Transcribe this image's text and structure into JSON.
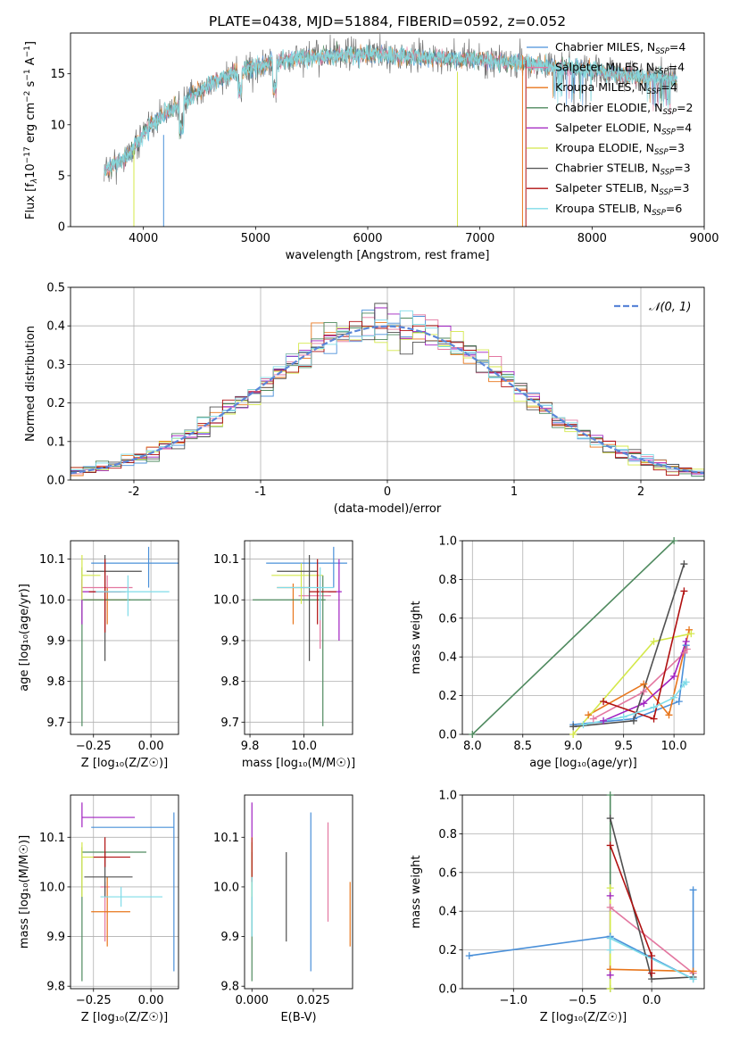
{
  "title": "PLATE=0438, MJD=51884, FIBERID=0592, z=0.052",
  "colors": {
    "Chabrier MILES": "#4a90d9",
    "Salpeter MILES": "#e377a0",
    "Kroupa MILES": "#e8761c",
    "Chabrier ELODIE": "#4f8a5f",
    "Salpeter ELODIE": "#a020c0",
    "Kroupa ELODIE": "#d4e84a",
    "Chabrier STELIB": "#505050",
    "Salpeter STELIB": "#b01010",
    "Kroupa STELIB": "#7fdce8",
    "normal": "#5b86d8",
    "spectrum": "#707070",
    "model": "#86d6da"
  },
  "chart_data": [
    {
      "id": "spectrum",
      "type": "line",
      "xlabel": "wavelength [Angstrom, rest frame]",
      "ylabel_parts": [
        "Flux [f",
        "λ",
        "10",
        "−17",
        " erg cm",
        "−2",
        " s",
        "−1",
        " A",
        "−1",
        "]"
      ],
      "xlim": [
        3350,
        9000
      ],
      "ylim": [
        0,
        19
      ],
      "xticks": [
        4000,
        5000,
        6000,
        7000,
        8000,
        9000
      ],
      "yticks": [
        0,
        5,
        10,
        15
      ],
      "continuum": [
        [
          3650,
          5.5
        ],
        [
          3700,
          5.8
        ],
        [
          3800,
          6.5
        ],
        [
          3900,
          7.5
        ],
        [
          4000,
          9.2
        ],
        [
          4100,
          10.3
        ],
        [
          4200,
          11.2
        ],
        [
          4300,
          11.8
        ],
        [
          4400,
          12.5
        ],
        [
          4500,
          13.3
        ],
        [
          4600,
          14.0
        ],
        [
          4700,
          14.5
        ],
        [
          4800,
          15.0
        ],
        [
          4900,
          15.4
        ],
        [
          5000,
          15.6
        ],
        [
          5200,
          16.2
        ],
        [
          5400,
          16.6
        ],
        [
          5600,
          16.7
        ],
        [
          5800,
          16.9
        ],
        [
          6000,
          16.9
        ],
        [
          6200,
          16.8
        ],
        [
          6400,
          16.7
        ],
        [
          6600,
          16.6
        ],
        [
          6800,
          16.5
        ],
        [
          7000,
          16.4
        ],
        [
          7200,
          16.2
        ],
        [
          7400,
          16.0
        ],
        [
          7600,
          15.8
        ],
        [
          7800,
          15.6
        ],
        [
          8000,
          15.3
        ],
        [
          8200,
          15.0
        ],
        [
          8400,
          14.8
        ],
        [
          8600,
          14.6
        ],
        [
          8760,
          14.4
        ]
      ],
      "legend": [
        {
          "name": "Chabrier MILES",
          "nssp": "4"
        },
        {
          "name": "Salpeter MILES",
          "nssp": "4"
        },
        {
          "name": "Kroupa MILES",
          "nssp": "4"
        },
        {
          "name": "Chabrier ELODIE",
          "nssp": "2"
        },
        {
          "name": "Salpeter ELODIE",
          "nssp": "4"
        },
        {
          "name": "Kroupa ELODIE",
          "nssp": "3"
        },
        {
          "name": "Chabrier STELIB",
          "nssp": "3"
        },
        {
          "name": "Salpeter STELIB",
          "nssp": "3"
        },
        {
          "name": "Kroupa STELIB",
          "nssp": "6"
        }
      ],
      "legend_location": "right"
    },
    {
      "id": "residuals",
      "type": "histogram",
      "xlabel": "(data-model)/error",
      "ylabel": "Normed distribution",
      "xlim": [
        -2.5,
        2.5
      ],
      "ylim": [
        0,
        0.5
      ],
      "xticks": [
        -2,
        -1,
        0,
        1,
        2
      ],
      "yticks": [
        0.0,
        0.1,
        0.2,
        0.3,
        0.4,
        0.5
      ],
      "normal_label": "𝒩(0, 1)",
      "bin_width": 0.1,
      "grid": true
    },
    {
      "id": "age_vs_Z",
      "type": "errorbar",
      "xlabel": "Z [log₁₀(Z/Z☉)]",
      "ylabel": "age  [log₁₀(age/yr)]",
      "xlim": [
        -0.35,
        0.12
      ],
      "ylim": [
        9.67,
        10.145
      ],
      "xticks": [
        -0.25,
        0.0
      ],
      "xtick_labels": [
        "−0.25",
        "0.00"
      ],
      "yticks": [
        9.7,
        9.8,
        9.9,
        10.0,
        10.1
      ],
      "points": [
        {
          "s": "Chabrier MILES",
          "x": -0.01,
          "y": 10.09,
          "xl": -0.26,
          "xh": 0.12,
          "yl": 10.03,
          "yh": 10.13
        },
        {
          "s": "Salpeter MILES",
          "x": -0.19,
          "y": 10.03,
          "xl": -0.3,
          "xh": -0.08,
          "yl": 10.0,
          "yh": 10.06
        },
        {
          "s": "Kroupa MILES",
          "x": -0.19,
          "y": 10.0,
          "xl": -0.29,
          "xh": -0.09,
          "yl": 9.94,
          "yh": 10.03
        },
        {
          "s": "Chabrier ELODIE",
          "x": -0.3,
          "y": 10.0,
          "xl": -0.3,
          "xh": 0.0,
          "yl": 9.69,
          "yh": 10.08
        },
        {
          "s": "Salpeter ELODIE",
          "x": -0.3,
          "y": 10.02,
          "xl": -0.3,
          "xh": -0.13,
          "yl": 9.94,
          "yh": 10.05
        },
        {
          "s": "Kroupa ELODIE",
          "x": -0.3,
          "y": 10.06,
          "xl": -0.3,
          "xh": -0.22,
          "yl": 10.0,
          "yh": 10.11
        },
        {
          "s": "Chabrier STELIB",
          "x": -0.2,
          "y": 10.07,
          "xl": -0.28,
          "xh": -0.04,
          "yl": 9.85,
          "yh": 10.11
        },
        {
          "s": "Salpeter STELIB",
          "x": -0.2,
          "y": 10.02,
          "xl": -0.27,
          "xh": -0.11,
          "yl": 9.92,
          "yh": 10.1
        },
        {
          "s": "Kroupa STELIB",
          "x": -0.1,
          "y": 10.02,
          "xl": -0.24,
          "xh": 0.08,
          "yl": 9.96,
          "yh": 10.06
        }
      ],
      "grid": true
    },
    {
      "id": "age_vs_mass",
      "type": "errorbar",
      "xlabel": "mass [log₁₀(M/M☉)]",
      "ylabel": "",
      "xlim": [
        9.78,
        10.18
      ],
      "ylim": [
        9.67,
        10.145
      ],
      "xticks": [
        9.8,
        10.0
      ],
      "xtick_labels": [
        "9.8",
        "10.0"
      ],
      "yticks": [
        9.7,
        9.8,
        9.9,
        10.0,
        10.1
      ],
      "points": [
        {
          "s": "Chabrier MILES",
          "x": 10.11,
          "y": 10.09,
          "xl": 9.86,
          "xh": 10.16,
          "yl": 10.03,
          "yh": 10.13
        },
        {
          "s": "Salpeter MILES",
          "x": 10.06,
          "y": 10.01,
          "xl": 9.98,
          "xh": 10.1,
          "yl": 9.88,
          "yh": 10.06
        },
        {
          "s": "Kroupa MILES",
          "x": 9.96,
          "y": 10.03,
          "xl": 9.9,
          "xh": 10.02,
          "yl": 9.94,
          "yh": 10.04
        },
        {
          "s": "Chabrier ELODIE",
          "x": 10.07,
          "y": 10.0,
          "xl": 9.81,
          "xh": 10.08,
          "yl": 9.69,
          "yh": 10.06
        },
        {
          "s": "Salpeter ELODIE",
          "x": 10.13,
          "y": 10.02,
          "xl": 10.09,
          "xh": 10.14,
          "yl": 9.9,
          "yh": 10.1
        },
        {
          "s": "Kroupa ELODIE",
          "x": 9.99,
          "y": 10.06,
          "xl": 9.88,
          "xh": 10.07,
          "yl": 9.99,
          "yh": 10.09
        },
        {
          "s": "Chabrier STELIB",
          "x": 10.02,
          "y": 10.07,
          "xl": 9.9,
          "xh": 10.05,
          "yl": 9.85,
          "yh": 10.11
        },
        {
          "s": "Salpeter STELIB",
          "x": 10.05,
          "y": 10.02,
          "xl": 10.02,
          "xh": 10.12,
          "yl": 9.94,
          "yh": 10.1
        },
        {
          "s": "Kroupa STELIB",
          "x": 10.06,
          "y": 10.03,
          "xl": 9.9,
          "xh": 10.11,
          "yl": 9.95,
          "yh": 10.08
        }
      ],
      "grid": true
    },
    {
      "id": "weight_vs_age",
      "type": "line",
      "xlabel": "age  [log₁₀(age/yr)]",
      "ylabel": "mass weight",
      "xlim": [
        7.9,
        10.3
      ],
      "ylim": [
        0,
        1.0
      ],
      "xticks": [
        8.0,
        8.5,
        9.0,
        9.5,
        10.0
      ],
      "xtick_labels": [
        "8.0",
        "8.5",
        "9.0",
        "9.5",
        "10.0"
      ],
      "yticks": [
        0.0,
        0.2,
        0.4,
        0.6,
        0.8,
        1.0
      ],
      "series": [
        {
          "s": "Chabrier MILES",
          "pts": [
            [
              9.0,
              0.05
            ],
            [
              9.6,
              0.08
            ],
            [
              10.05,
              0.17
            ],
            [
              10.12,
              0.46
            ]
          ]
        },
        {
          "s": "Salpeter MILES",
          "pts": [
            [
              9.2,
              0.08
            ],
            [
              9.7,
              0.22
            ],
            [
              10.1,
              0.42
            ],
            [
              10.13,
              0.44
            ]
          ]
        },
        {
          "s": "Kroupa MILES",
          "pts": [
            [
              9.15,
              0.1
            ],
            [
              9.7,
              0.26
            ],
            [
              9.95,
              0.1
            ],
            [
              10.15,
              0.54
            ]
          ]
        },
        {
          "s": "Chabrier ELODIE",
          "pts": [
            [
              8.0,
              0.0
            ],
            [
              10.0,
              1.0
            ]
          ]
        },
        {
          "s": "Salpeter ELODIE",
          "pts": [
            [
              9.3,
              0.07
            ],
            [
              9.7,
              0.16
            ],
            [
              10.0,
              0.3
            ],
            [
              10.12,
              0.48
            ]
          ]
        },
        {
          "s": "Kroupa ELODIE",
          "pts": [
            [
              9.0,
              0.0
            ],
            [
              9.8,
              0.48
            ],
            [
              10.17,
              0.52
            ]
          ]
        },
        {
          "s": "Chabrier STELIB",
          "pts": [
            [
              9.0,
              0.04
            ],
            [
              9.6,
              0.07
            ],
            [
              10.1,
              0.88
            ]
          ]
        },
        {
          "s": "Salpeter STELIB",
          "pts": [
            [
              9.3,
              0.17
            ],
            [
              9.8,
              0.08
            ],
            [
              10.1,
              0.74
            ]
          ]
        },
        {
          "s": "Kroupa STELIB",
          "pts": [
            [
              9.1,
              0.05
            ],
            [
              9.5,
              0.09
            ],
            [
              9.8,
              0.14
            ],
            [
              10.0,
              0.19
            ],
            [
              10.1,
              0.26
            ],
            [
              10.12,
              0.27
            ]
          ]
        }
      ],
      "grid": true
    },
    {
      "id": "mass_vs_Z",
      "type": "errorbar",
      "xlabel": "Z [log₁₀(Z/Z☉)]",
      "ylabel": "mass [log₁₀(M/M☉)]",
      "xlim": [
        -0.35,
        0.12
      ],
      "ylim": [
        9.795,
        10.185
      ],
      "xticks": [
        -0.25,
        0.0
      ],
      "xtick_labels": [
        "−0.25",
        "0.00"
      ],
      "yticks": [
        9.8,
        9.9,
        10.0,
        10.1
      ],
      "points": [
        {
          "s": "Chabrier MILES",
          "x": 0.1,
          "y": 10.12,
          "xl": -0.26,
          "xh": 0.1,
          "yl": 9.83,
          "yh": 10.15
        },
        {
          "s": "Salpeter MILES",
          "x": -0.2,
          "y": 10.0,
          "xl": -0.22,
          "xh": -0.18,
          "yl": 9.89,
          "yh": 10.01
        },
        {
          "s": "Kroupa MILES",
          "x": -0.19,
          "y": 9.95,
          "xl": -0.26,
          "xh": -0.09,
          "yl": 9.88,
          "yh": 10.02
        },
        {
          "s": "Chabrier ELODIE",
          "x": -0.3,
          "y": 10.07,
          "xl": -0.3,
          "xh": -0.02,
          "yl": 9.81,
          "yh": 10.08
        },
        {
          "s": "Salpeter ELODIE",
          "x": -0.3,
          "y": 10.14,
          "xl": -0.3,
          "xh": -0.07,
          "yl": 10.12,
          "yh": 10.17
        },
        {
          "s": "Kroupa ELODIE",
          "x": -0.3,
          "y": 10.06,
          "xl": -0.3,
          "xh": -0.2,
          "yl": 9.98,
          "yh": 10.09
        },
        {
          "s": "Chabrier STELIB",
          "x": -0.2,
          "y": 10.02,
          "xl": -0.29,
          "xh": -0.08,
          "yl": 9.98,
          "yh": 10.07
        },
        {
          "s": "Salpeter STELIB",
          "x": -0.2,
          "y": 10.06,
          "xl": -0.25,
          "xh": -0.09,
          "yl": 10.04,
          "yh": 10.1
        },
        {
          "s": "Kroupa STELIB",
          "x": -0.13,
          "y": 9.98,
          "xl": -0.22,
          "xh": 0.05,
          "yl": 9.96,
          "yh": 10.0
        }
      ],
      "grid": true
    },
    {
      "id": "mass_vs_ebv",
      "type": "errorbar",
      "xlabel": "E(B-V)",
      "ylabel": "",
      "xlim": [
        -0.003,
        0.041
      ],
      "ylim": [
        9.795,
        10.185
      ],
      "xticks": [
        0.0,
        0.025
      ],
      "xtick_labels": [
        "0.000",
        "0.025"
      ],
      "yticks": [
        9.8,
        9.9,
        10.0,
        10.1
      ],
      "points": [
        {
          "s": "Chabrier MILES",
          "x": 0.024,
          "y": 10.0,
          "xl": 0.024,
          "xh": 0.024,
          "yl": 9.83,
          "yh": 10.15
        },
        {
          "s": "Salpeter MILES",
          "x": 0.031,
          "y": 10.03,
          "xl": 0.031,
          "xh": 0.031,
          "yl": 9.93,
          "yh": 10.13
        },
        {
          "s": "Kroupa MILES",
          "x": 0.04,
          "y": 9.95,
          "xl": 0.04,
          "xh": 0.04,
          "yl": 9.88,
          "yh": 10.01
        },
        {
          "s": "Chabrier ELODIE",
          "x": 0.0,
          "y": 9.95,
          "xl": 0.0,
          "xh": 0.0,
          "yl": 9.81,
          "yh": 10.07
        },
        {
          "s": "Salpeter ELODIE",
          "x": 0.0,
          "y": 10.14,
          "xl": 0.0,
          "xh": 0.0,
          "yl": 10.1,
          "yh": 10.17
        },
        {
          "s": "Kroupa ELODIE",
          "x": 0.0,
          "y": 10.02,
          "xl": 0.0,
          "xh": 0.0,
          "yl": 9.98,
          "yh": 10.09
        },
        {
          "s": "Chabrier STELIB",
          "x": 0.014,
          "y": 9.98,
          "xl": 0.014,
          "xh": 0.014,
          "yl": 9.89,
          "yh": 10.07
        },
        {
          "s": "Salpeter STELIB",
          "x": 0.0,
          "y": 10.06,
          "xl": 0.0,
          "xh": 0.0,
          "yl": 10.01,
          "yh": 10.1
        },
        {
          "s": "Kroupa STELIB",
          "x": 0.0,
          "y": 9.96,
          "xl": 0.0,
          "xh": 0.0,
          "yl": 9.9,
          "yh": 10.02
        }
      ],
      "grid": false
    },
    {
      "id": "weight_vs_Z",
      "type": "line",
      "xlabel": "Z [log₁₀(Z/Z☉)]",
      "ylabel": "mass weight",
      "xlim": [
        -1.37,
        0.38
      ],
      "ylim": [
        0,
        1.0
      ],
      "xticks": [
        -1.0,
        -0.5,
        0.0
      ],
      "xtick_labels": [
        "−1.0",
        "−0.5",
        "0.0"
      ],
      "yticks": [
        0.0,
        0.2,
        0.4,
        0.6,
        0.8,
        1.0
      ],
      "series": [
        {
          "s": "Chabrier MILES",
          "pts": [
            [
              -1.32,
              0.17
            ],
            [
              -0.3,
              0.27
            ],
            [
              0.3,
              0.05
            ],
            [
              0.3,
              0.51
            ]
          ]
        },
        {
          "s": "Salpeter MILES",
          "pts": [
            [
              -0.3,
              0.42
            ],
            [
              0.3,
              0.08
            ]
          ]
        },
        {
          "s": "Kroupa MILES",
          "pts": [
            [
              -0.3,
              0.1
            ],
            [
              0.3,
              0.09
            ]
          ]
        },
        {
          "s": "Chabrier ELODIE",
          "pts": [
            [
              -0.3,
              0.0
            ],
            [
              -0.3,
              1.0
            ]
          ]
        },
        {
          "s": "Salpeter ELODIE",
          "pts": [
            [
              -0.3,
              0.07
            ],
            [
              -0.3,
              0.48
            ]
          ]
        },
        {
          "s": "Kroupa ELODIE",
          "pts": [
            [
              -0.3,
              0.0
            ],
            [
              -0.3,
              0.52
            ]
          ]
        },
        {
          "s": "Chabrier STELIB",
          "pts": [
            [
              -0.3,
              0.88
            ],
            [
              0.0,
              0.05
            ],
            [
              0.3,
              0.06
            ]
          ]
        },
        {
          "s": "Salpeter STELIB",
          "pts": [
            [
              -0.3,
              0.74
            ],
            [
              0.0,
              0.17
            ],
            [
              0.0,
              0.08
            ]
          ]
        },
        {
          "s": "Kroupa STELIB",
          "pts": [
            [
              -0.3,
              0.2
            ],
            [
              -0.3,
              0.26
            ],
            [
              0.3,
              0.05
            ]
          ]
        }
      ],
      "grid": true
    }
  ]
}
